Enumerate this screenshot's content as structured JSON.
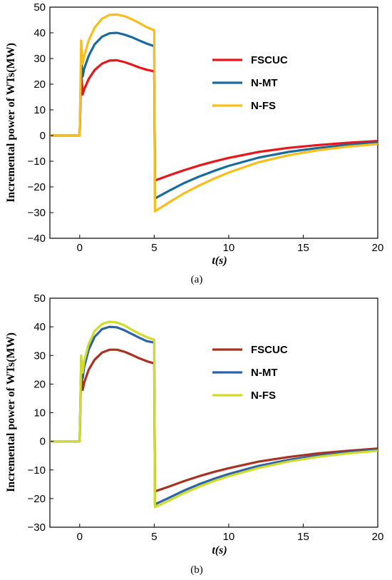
{
  "chart_data": [
    {
      "type": "line",
      "caption": "(a)",
      "xlabel": "t(s)",
      "ylabel": "Incremental power of WTs(MW)",
      "xlim": [
        -2,
        20
      ],
      "ylim": [
        -40,
        50
      ],
      "xticks": [
        0,
        5,
        10,
        15,
        20
      ],
      "yticks": [
        -40,
        -30,
        -20,
        -10,
        0,
        10,
        20,
        30,
        40,
        50
      ],
      "grid": false,
      "legend": "top-right",
      "series": [
        {
          "name": "FSCUC",
          "color": "#e8161b",
          "x": [
            -2,
            0,
            0.1,
            0.2,
            0.3,
            0.6,
            1,
            1.5,
            2,
            2.5,
            3,
            3.5,
            4,
            4.5,
            5,
            5.05,
            6,
            7,
            8,
            9,
            10,
            12,
            14,
            16,
            18,
            20
          ],
          "y": [
            0,
            0,
            25,
            16,
            18,
            22,
            25.5,
            28,
            29.2,
            29.3,
            28.6,
            27.6,
            26.5,
            25.6,
            25,
            -17.5,
            -15.5,
            -13.5,
            -11.7,
            -10.1,
            -8.7,
            -6.4,
            -4.8,
            -3.7,
            -2.8,
            -2.1
          ]
        },
        {
          "name": "N-MT",
          "color": "#1b6a9c",
          "x": [
            -2,
            0,
            0.1,
            0.2,
            0.3,
            0.6,
            1,
            1.5,
            2,
            2.5,
            3,
            3.5,
            4,
            4.5,
            5,
            5.05,
            6,
            7,
            8,
            9,
            10,
            12,
            14,
            16,
            18,
            20
          ],
          "y": [
            0,
            0,
            30,
            23,
            26,
            31,
            35.5,
            38.5,
            39.8,
            40,
            39.3,
            38.3,
            37,
            35.8,
            34.8,
            -24.5,
            -21.5,
            -18.5,
            -16,
            -13.8,
            -11.8,
            -8.6,
            -6.4,
            -4.8,
            -3.6,
            -2.7
          ]
        },
        {
          "name": "N-FS",
          "color": "#f8be1c",
          "x": [
            -2,
            0,
            0.1,
            0.2,
            0.3,
            0.6,
            1,
            1.5,
            2,
            2.5,
            3,
            3.5,
            4,
            4.5,
            5,
            5.05,
            6,
            7,
            8,
            9,
            10,
            12,
            14,
            16,
            18,
            20
          ],
          "y": [
            0,
            0,
            37,
            28,
            31,
            37,
            42,
            45.5,
            47,
            47.1,
            46.5,
            45.3,
            43.8,
            42.2,
            41,
            -29.5,
            -26,
            -22.5,
            -19.5,
            -16.8,
            -14.4,
            -10.4,
            -7.7,
            -5.7,
            -4.3,
            -3.3
          ]
        }
      ]
    },
    {
      "type": "line",
      "caption": "(b)",
      "xlabel": "t(s)",
      "ylabel": "Incremental power of WTs(MW)",
      "xlim": [
        -2,
        20
      ],
      "ylim": [
        -30,
        50
      ],
      "xticks": [
        0,
        5,
        10,
        15,
        20
      ],
      "yticks": [
        -30,
        -20,
        -10,
        0,
        10,
        20,
        30,
        40,
        50
      ],
      "grid": false,
      "legend": "top-right",
      "series": [
        {
          "name": "FSCUC",
          "color": "#a83222",
          "x": [
            -2,
            0,
            0.1,
            0.2,
            0.3,
            0.6,
            1,
            1.5,
            2,
            2.5,
            3,
            3.5,
            4,
            4.5,
            5,
            5.05,
            6,
            7,
            8,
            9,
            10,
            12,
            14,
            16,
            18,
            20
          ],
          "y": [
            0,
            0,
            26,
            18,
            20.5,
            25,
            28.5,
            31,
            32,
            32,
            31.3,
            30.2,
            29,
            28,
            27.2,
            -17.5,
            -15.8,
            -13.9,
            -12.2,
            -10.7,
            -9.4,
            -7.1,
            -5.5,
            -4.2,
            -3.3,
            -2.5
          ]
        },
        {
          "name": "N-MT",
          "color": "#2d63a8",
          "x": [
            -2,
            0,
            0.1,
            0.2,
            0.3,
            0.6,
            1,
            1.5,
            2,
            2.5,
            3,
            3.5,
            4,
            4.5,
            5,
            5.05,
            6,
            7,
            8,
            9,
            10,
            12,
            14,
            16,
            18,
            20
          ],
          "y": [
            0,
            0,
            29,
            22,
            26,
            32,
            36.5,
            39.2,
            40,
            39.8,
            38.8,
            37.5,
            36.2,
            35,
            34.5,
            -22,
            -19.7,
            -17.2,
            -15,
            -13.1,
            -11.4,
            -8.6,
            -6.5,
            -4.9,
            -3.8,
            -2.9
          ]
        },
        {
          "name": "N-FS",
          "color": "#cfdc2a",
          "x": [
            -2,
            0,
            0.1,
            0.2,
            0.3,
            0.6,
            1,
            1.5,
            2,
            2.5,
            3,
            3.5,
            4,
            4.5,
            5,
            5.05,
            6,
            7,
            8,
            9,
            10,
            12,
            14,
            16,
            18,
            20
          ],
          "y": [
            0,
            0,
            30,
            24,
            28,
            34,
            38.5,
            41,
            41.8,
            41.5,
            40.5,
            39,
            37.6,
            36.4,
            35.5,
            -23,
            -20.7,
            -18.1,
            -15.9,
            -13.9,
            -12.2,
            -9.3,
            -7.1,
            -5.4,
            -4.2,
            -3.3
          ]
        }
      ]
    }
  ]
}
